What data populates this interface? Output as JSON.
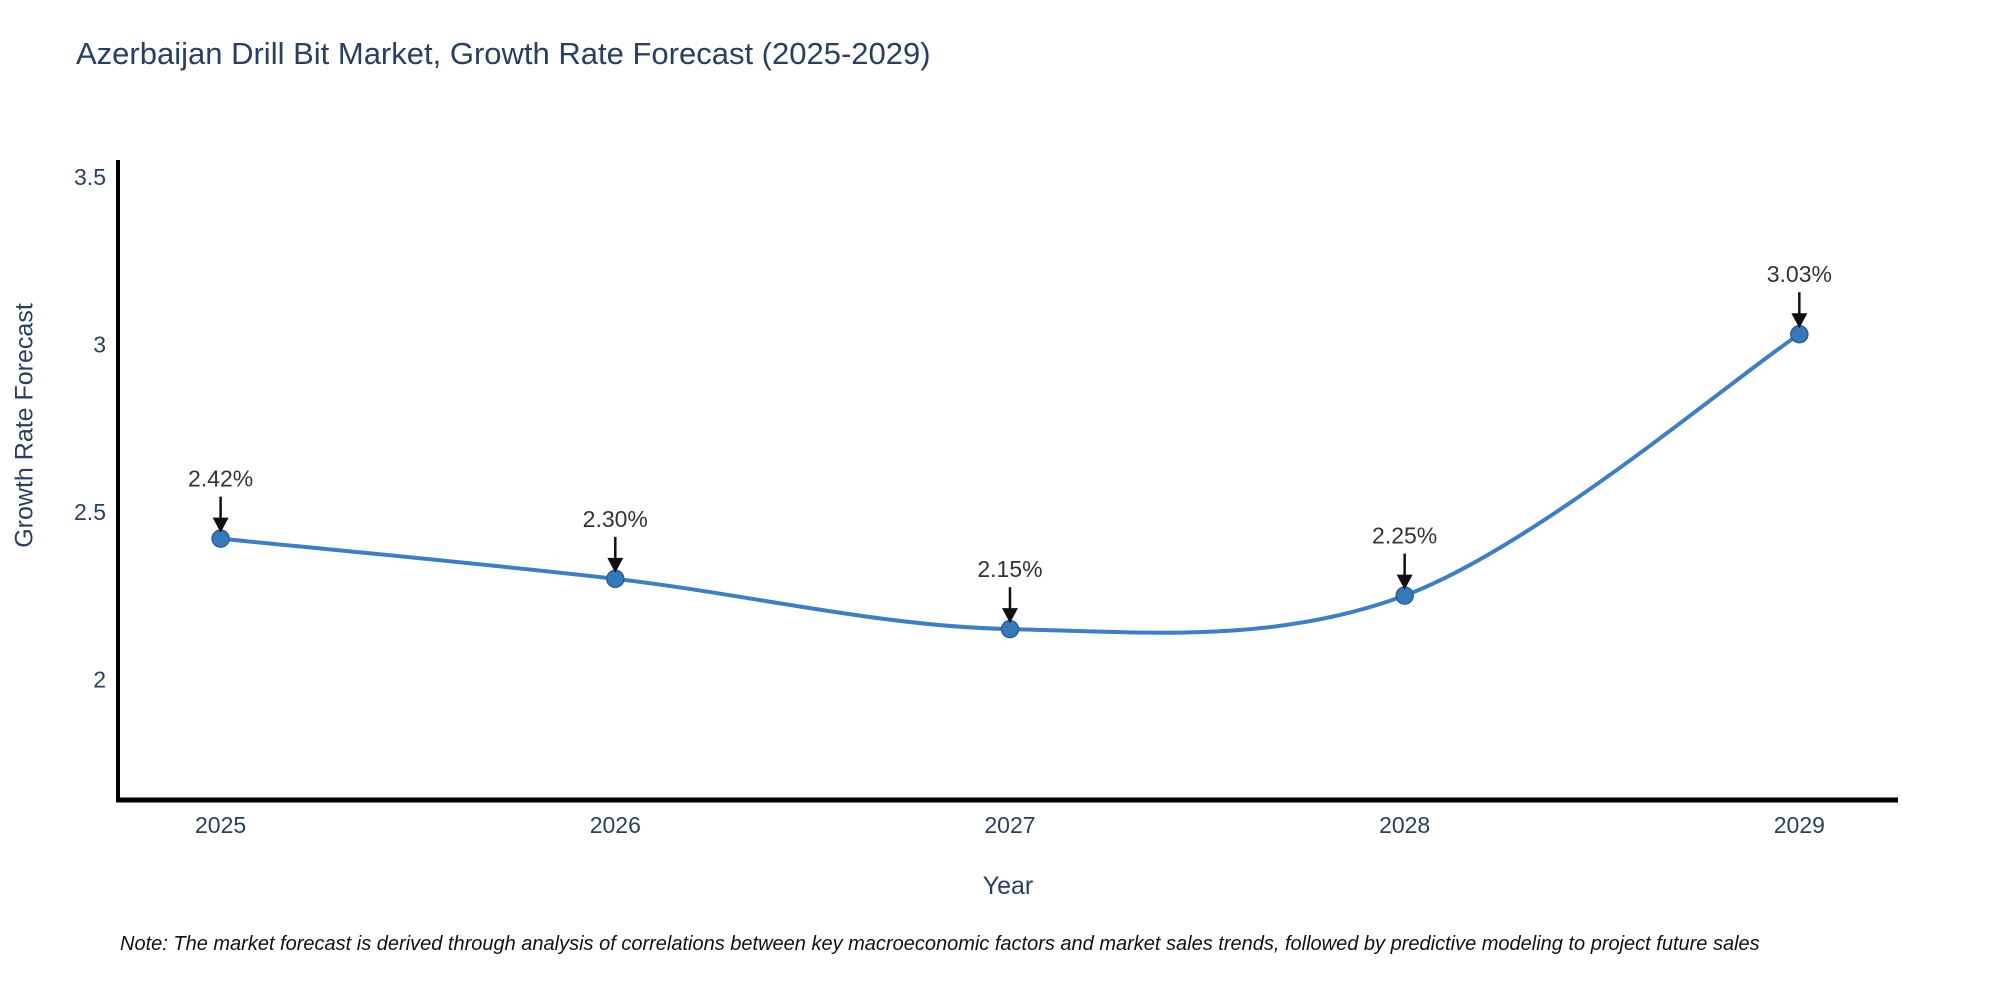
{
  "title": "Azerbaijan Drill Bit Market, Growth Rate Forecast (2025-2029)",
  "note": "Note: The market forecast is derived through analysis of correlations between key macroeconomic factors and market sales trends, followed by predictive modeling to project future sales",
  "chart_data": {
    "type": "line",
    "title": "Azerbaijan Drill Bit Market, Growth Rate Forecast (2025-2029)",
    "xlabel": "Year",
    "ylabel": "Growth Rate Forecast",
    "x": [
      2025,
      2026,
      2027,
      2028,
      2029
    ],
    "values": [
      2.42,
      2.3,
      2.15,
      2.25,
      3.03
    ],
    "point_labels": [
      "2.42%",
      "2.30%",
      "2.15%",
      "2.25%",
      "3.03%"
    ],
    "xtick_labels": [
      "2025",
      "2026",
      "2027",
      "2028",
      "2029"
    ],
    "ytick_values": [
      2,
      2.5,
      3,
      3.5
    ],
    "ytick_labels": [
      "2",
      "2.5",
      "3",
      "3.5"
    ],
    "xlim": [
      2024.74,
      2029.25
    ],
    "ylim": [
      1.64,
      3.55
    ],
    "grid": false,
    "smooth": true,
    "legend": "none",
    "colors": {
      "line": "#3f7fbf",
      "marker_fill": "#3679ba",
      "marker_edge": "#2b5f94",
      "axis": "#000000",
      "tick_text": "#2a3f5f",
      "annotation_text": "#333333",
      "annotation_arrow": "#111111",
      "background": "#ffffff"
    }
  }
}
